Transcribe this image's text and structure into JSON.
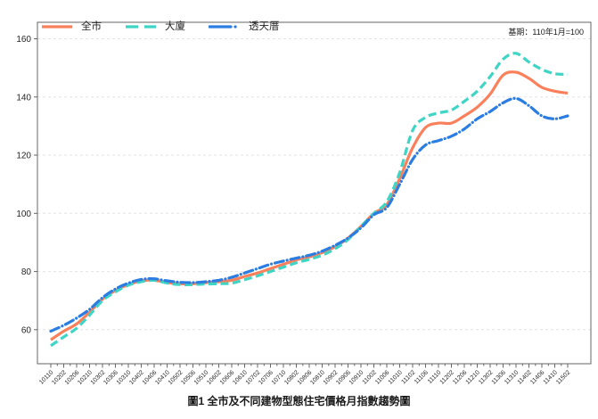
{
  "title": "圖1 全市及不同建物型態住宅價格月指數趨勢圖",
  "annotation": "基期：110年1月=100",
  "colors": {
    "citywide": "#fa805c",
    "apartment": "#3fd5c5",
    "townhouse": "#2b7de1",
    "grid": "#e3e3e3",
    "spine": "#666666",
    "tick_text": "#262626"
  },
  "legend": {
    "items": [
      {
        "label": "全市",
        "color": "#fa805c",
        "style": "solid"
      },
      {
        "label": "大廈",
        "color": "#3fd5c5",
        "style": "dashed"
      },
      {
        "label": "透天厝",
        "color": "#2b7de1",
        "style": "dashdot"
      }
    ]
  },
  "chart_data": {
    "type": "line",
    "title": "圖1 全市及不同建物型態住宅價格月指數趨勢圖",
    "base_note": "基期：110年1月=100",
    "xlabel": "",
    "ylabel": "",
    "yticks": [
      60,
      80,
      100,
      120,
      140,
      160
    ],
    "ylim": [
      48.3,
      166.5
    ],
    "grid": "horizontal-dashed",
    "legend_position": "top-left-inside",
    "categories": [
      "10110",
      "10202",
      "10206",
      "10210",
      "10302",
      "10306",
      "10310",
      "10402",
      "10406",
      "10410",
      "10502",
      "10506",
      "10510",
      "10602",
      "10606",
      "10610",
      "10702",
      "10706",
      "10710",
      "10802",
      "10806",
      "10810",
      "10902",
      "10906",
      "10910",
      "11002",
      "11006",
      "11010",
      "11102",
      "11106",
      "11110",
      "11202",
      "11206",
      "11210",
      "11302",
      "11306",
      "11310",
      "11402",
      "11406",
      "11410",
      "11502"
    ],
    "series": [
      {
        "name": "全市",
        "color": "#fa805c",
        "dash": "solid",
        "values": [
          56.5,
          59.5,
          62,
          66,
          70.5,
          73.5,
          75.5,
          76.8,
          77,
          76.2,
          75.8,
          75.8,
          76.2,
          76.5,
          77,
          78.3,
          79.5,
          81,
          82.5,
          84,
          85,
          86.5,
          88.5,
          91.5,
          95.5,
          100,
          103,
          112,
          122.5,
          129.5,
          131,
          131,
          133.5,
          136.5,
          141,
          147.5,
          148.5,
          146.4,
          143.3,
          142,
          141.3
        ]
      },
      {
        "name": "大廈",
        "color": "#3fd5c5",
        "dash": "dashed",
        "values": [
          54.5,
          57.5,
          60.5,
          65,
          70,
          73,
          75.3,
          76.5,
          77,
          76,
          75.5,
          75.5,
          75.7,
          75.8,
          76,
          77.2,
          78.5,
          80,
          81.5,
          83,
          84.2,
          85.6,
          87.8,
          91,
          95.5,
          100,
          104,
          114,
          128.5,
          133,
          134.5,
          135.5,
          138.5,
          142,
          147,
          153,
          155,
          152,
          149.5,
          148,
          147.8
        ]
      },
      {
        "name": "透天厝",
        "color": "#2b7de1",
        "dash": "dashdot",
        "values": [
          59.5,
          61.5,
          64,
          67,
          71,
          74,
          76,
          77.3,
          77.5,
          76.8,
          76.3,
          76.2,
          76.5,
          77,
          78,
          79.5,
          81,
          82.5,
          83.6,
          84.6,
          85.6,
          87,
          89,
          91.5,
          95,
          99.5,
          102,
          110,
          118.5,
          123.5,
          125,
          126.5,
          129,
          132.5,
          135,
          138,
          139.5,
          137,
          133.5,
          132.5,
          133.5
        ]
      }
    ]
  }
}
